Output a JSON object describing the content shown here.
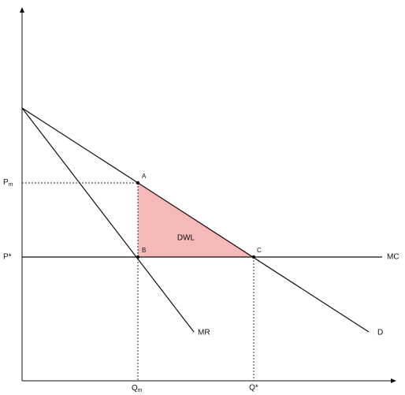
{
  "labels": {
    "pm": {
      "main": "P",
      "sub": "m"
    },
    "pstar": "P*",
    "qm": {
      "main": "Q",
      "sub": "m"
    },
    "qstar": "Q*",
    "point_a": "A",
    "point_b": "B",
    "point_c": "C",
    "dwl": "DWL",
    "mc": "MC",
    "mr": "MR",
    "d": "D"
  }
}
